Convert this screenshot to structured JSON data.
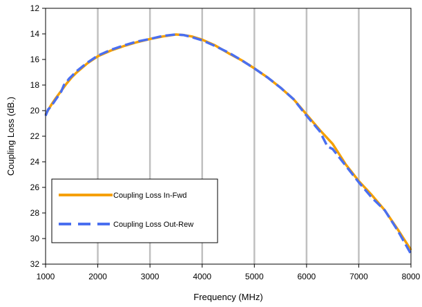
{
  "chart_data": {
    "type": "line",
    "title": "",
    "xlabel": "Frequency (MHz)",
    "ylabel": "Coupling Loss (dB.)",
    "xlim": [
      1000,
      8000
    ],
    "ylim": [
      12,
      32
    ],
    "y_inverted": true,
    "x_ticks": [
      1000,
      2000,
      3000,
      4000,
      5000,
      6000,
      7000,
      8000
    ],
    "y_ticks": [
      12,
      14,
      16,
      18,
      20,
      22,
      24,
      26,
      28,
      30,
      32
    ],
    "x_tick_labels": [
      "1000",
      "2000",
      "3000",
      "4000",
      "5000",
      "6000",
      "7000",
      "8000"
    ],
    "y_tick_labels": [
      "12",
      "14",
      "16",
      "18",
      "20",
      "22",
      "24",
      "26",
      "28",
      "30",
      "32"
    ],
    "grid": {
      "vertical": true,
      "horizontal": false
    },
    "legend_position": "bottom-left",
    "series": [
      {
        "name": "Coupling Loss In-Fwd",
        "color": "#f5a000",
        "dash": "solid",
        "x": [
          1000,
          1100,
          1200,
          1300,
          1400,
          1500,
          1600,
          1800,
          2000,
          2250,
          2500,
          2750,
          3000,
          3250,
          3500,
          3650,
          3800,
          4000,
          4250,
          4500,
          4750,
          5000,
          5250,
          5500,
          5750,
          6000,
          6250,
          6500,
          6750,
          7000,
          7250,
          7500,
          7750,
          8000
        ],
        "y": [
          20.3,
          19.6,
          19.0,
          18.45,
          17.9,
          17.4,
          17.0,
          16.3,
          15.75,
          15.3,
          14.95,
          14.65,
          14.4,
          14.2,
          14.05,
          14.1,
          14.2,
          14.45,
          14.9,
          15.5,
          16.05,
          16.7,
          17.4,
          18.2,
          19.1,
          20.3,
          21.5,
          22.6,
          24.2,
          25.5,
          26.6,
          27.8,
          29.3,
          30.9
        ]
      },
      {
        "name": "Coupling Loss Out-Rew",
        "color": "#4a6ff0",
        "dash": "dashed",
        "x": [
          1000,
          1050,
          1100,
          1150,
          1200,
          1300,
          1350,
          1400,
          1450,
          1500,
          1600,
          1800,
          2000,
          2250,
          2500,
          2750,
          3000,
          3250,
          3500,
          3650,
          3800,
          4000,
          4250,
          4500,
          4750,
          5000,
          5250,
          5500,
          5750,
          6000,
          6250,
          6400,
          6500,
          6750,
          7000,
          7250,
          7500,
          7750,
          8000
        ],
        "y": [
          20.4,
          19.9,
          19.7,
          19.4,
          19.1,
          18.5,
          18.0,
          17.8,
          17.5,
          17.3,
          16.9,
          16.25,
          15.7,
          15.25,
          14.9,
          14.6,
          14.4,
          14.15,
          14.05,
          14.1,
          14.25,
          14.5,
          14.95,
          15.45,
          16.05,
          16.7,
          17.4,
          18.2,
          19.1,
          20.4,
          21.6,
          22.8,
          23.0,
          24.3,
          25.6,
          26.8,
          27.8,
          29.4,
          31.2
        ]
      }
    ]
  }
}
